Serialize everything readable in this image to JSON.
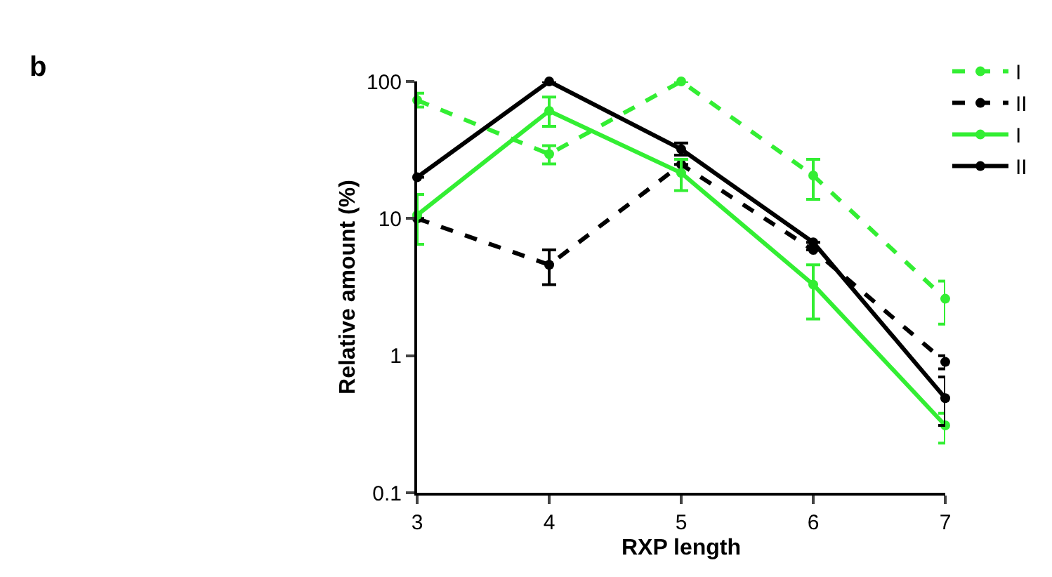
{
  "chart_data": {
    "type": "line",
    "xlabel": "RXP length",
    "ylabel": "Relative amount (%)",
    "annotations": [
      "b"
    ],
    "x": [
      3,
      4,
      5,
      6,
      7
    ],
    "xlim": [
      3,
      7
    ],
    "xticks": [
      3,
      4,
      5,
      6,
      7
    ],
    "log": "y",
    "ylim": [
      0.1,
      100
    ],
    "yticks": [
      0.1,
      1,
      10,
      100
    ],
    "legend": "top right",
    "marker": "circle",
    "series": [
      {
        "name": "I",
        "color": "#33ee33",
        "line_style": "dashed",
        "values": [
          73,
          29.5,
          100,
          20.6,
          2.6
        ],
        "errors": [
          [
            65,
            82
          ],
          [
            25,
            34
          ],
          null,
          [
            13.8,
            27
          ],
          [
            1.7,
            3.5
          ]
        ]
      },
      {
        "name": "II",
        "color": "#000000",
        "line_style": "dashed",
        "values": [
          10,
          4.6,
          24.8,
          5.9,
          0.9
        ],
        "errors": [
          null,
          [
            3.3,
            5.9
          ],
          null,
          null,
          [
            0.8,
            1.0
          ]
        ]
      },
      {
        "name": "I",
        "color": "#33ee33",
        "line_style": "solid",
        "values": [
          10.6,
          61,
          21.5,
          3.3,
          0.31
        ],
        "errors": [
          [
            6.5,
            15
          ],
          [
            47,
            77
          ],
          [
            16,
            27
          ],
          [
            1.85,
            4.6
          ],
          [
            0.23,
            0.38
          ]
        ]
      },
      {
        "name": "II",
        "color": "#000000",
        "line_style": "solid",
        "values": [
          20,
          100,
          32,
          6.7,
          0.49
        ],
        "errors": [
          null,
          null,
          [
            29,
            35.5
          ],
          null,
          [
            0.31,
            0.7
          ]
        ]
      }
    ]
  }
}
